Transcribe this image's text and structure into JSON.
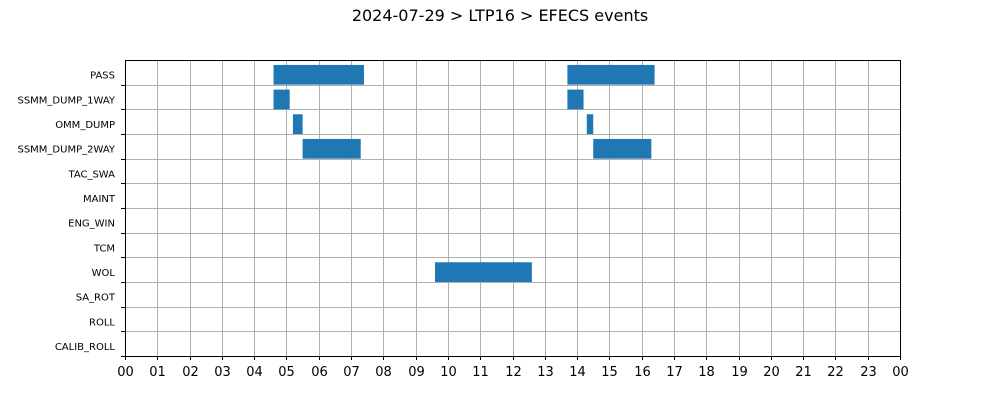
{
  "chart_data": {
    "type": "bar",
    "orientation": "horizontal-gantt",
    "title": "2024-07-29 > LTP16 > EFECS events",
    "xlabel": "",
    "ylabel": "",
    "xlim": [
      0,
      24
    ],
    "x_tick_labels": [
      "00",
      "01",
      "02",
      "03",
      "04",
      "05",
      "06",
      "07",
      "08",
      "09",
      "10",
      "11",
      "12",
      "13",
      "14",
      "15",
      "16",
      "17",
      "18",
      "19",
      "20",
      "21",
      "22",
      "23",
      "00"
    ],
    "categories": [
      "PASS",
      "SSMM_DUMP_1WAY",
      "OMM_DUMP",
      "SSMM_DUMP_2WAY",
      "TAC_SWA",
      "MAINT",
      "ENG_WIN",
      "TCM",
      "WOL",
      "SA_ROT",
      "ROLL",
      "CALIB_ROLL"
    ],
    "series": [
      {
        "color": "#1f77b4",
        "intervals": [
          {
            "category": "PASS",
            "start": 4.6,
            "end": 7.4
          },
          {
            "category": "PASS",
            "start": 13.7,
            "end": 16.4
          },
          {
            "category": "SSMM_DUMP_1WAY",
            "start": 4.6,
            "end": 5.1
          },
          {
            "category": "SSMM_DUMP_1WAY",
            "start": 13.7,
            "end": 14.2
          },
          {
            "category": "OMM_DUMP",
            "start": 5.2,
            "end": 5.5
          },
          {
            "category": "OMM_DUMP",
            "start": 14.3,
            "end": 14.5
          },
          {
            "category": "SSMM_DUMP_2WAY",
            "start": 5.5,
            "end": 7.3
          },
          {
            "category": "SSMM_DUMP_2WAY",
            "start": 14.5,
            "end": 16.3
          },
          {
            "category": "WOL",
            "start": 9.6,
            "end": 12.6
          }
        ]
      }
    ],
    "grid": true,
    "legend": "none"
  }
}
